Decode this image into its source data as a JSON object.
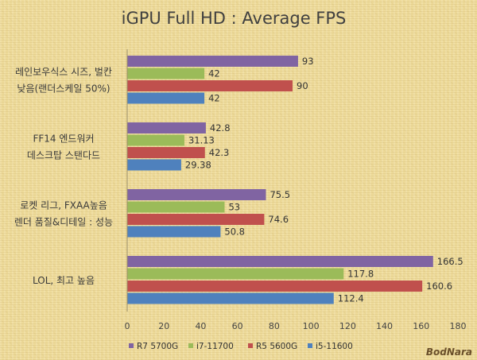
{
  "chart_data": {
    "type": "bar",
    "orientation": "horizontal",
    "title": "iGPU Full HD : Average FPS",
    "categories": [
      [
        "레인보우식스 시즈, 벌칸",
        "낮음(랜더스케일 50%)"
      ],
      [
        "FF14 엔드워커",
        "데스크탑 스탠다드"
      ],
      [
        "로켓 리그, FXAA높음",
        "렌더 품질&디테일 : 성능"
      ],
      [
        "LOL, 최고 높음"
      ]
    ],
    "series": [
      {
        "name": "R7 5700G",
        "color": "#8064a2",
        "values": [
          93,
          42.8,
          75.5,
          166.5
        ],
        "labels": [
          "93",
          "42.8",
          "75.5",
          "166.5"
        ]
      },
      {
        "name": "i7-11700",
        "color": "#9bbb59",
        "values": [
          42,
          31.13,
          53,
          117.8
        ],
        "labels": [
          "42",
          "31.13",
          "53",
          "117.8"
        ]
      },
      {
        "name": "R5 5600G",
        "color": "#c0504d",
        "values": [
          90,
          42.3,
          74.6,
          160.6
        ],
        "labels": [
          "90",
          "42.3",
          "74.6",
          "160.6"
        ]
      },
      {
        "name": "i5-11600",
        "color": "#4f81bd",
        "values": [
          42,
          29.38,
          50.8,
          112.4
        ],
        "labels": [
          "42",
          "29.38",
          "50.8",
          "112.4"
        ]
      }
    ],
    "xlim": [
      0,
      180
    ],
    "xticks": [
      0,
      20,
      40,
      60,
      80,
      100,
      120,
      140,
      160,
      180
    ],
    "grid": false,
    "legend_position": "bottom"
  },
  "watermark": "BodNara"
}
